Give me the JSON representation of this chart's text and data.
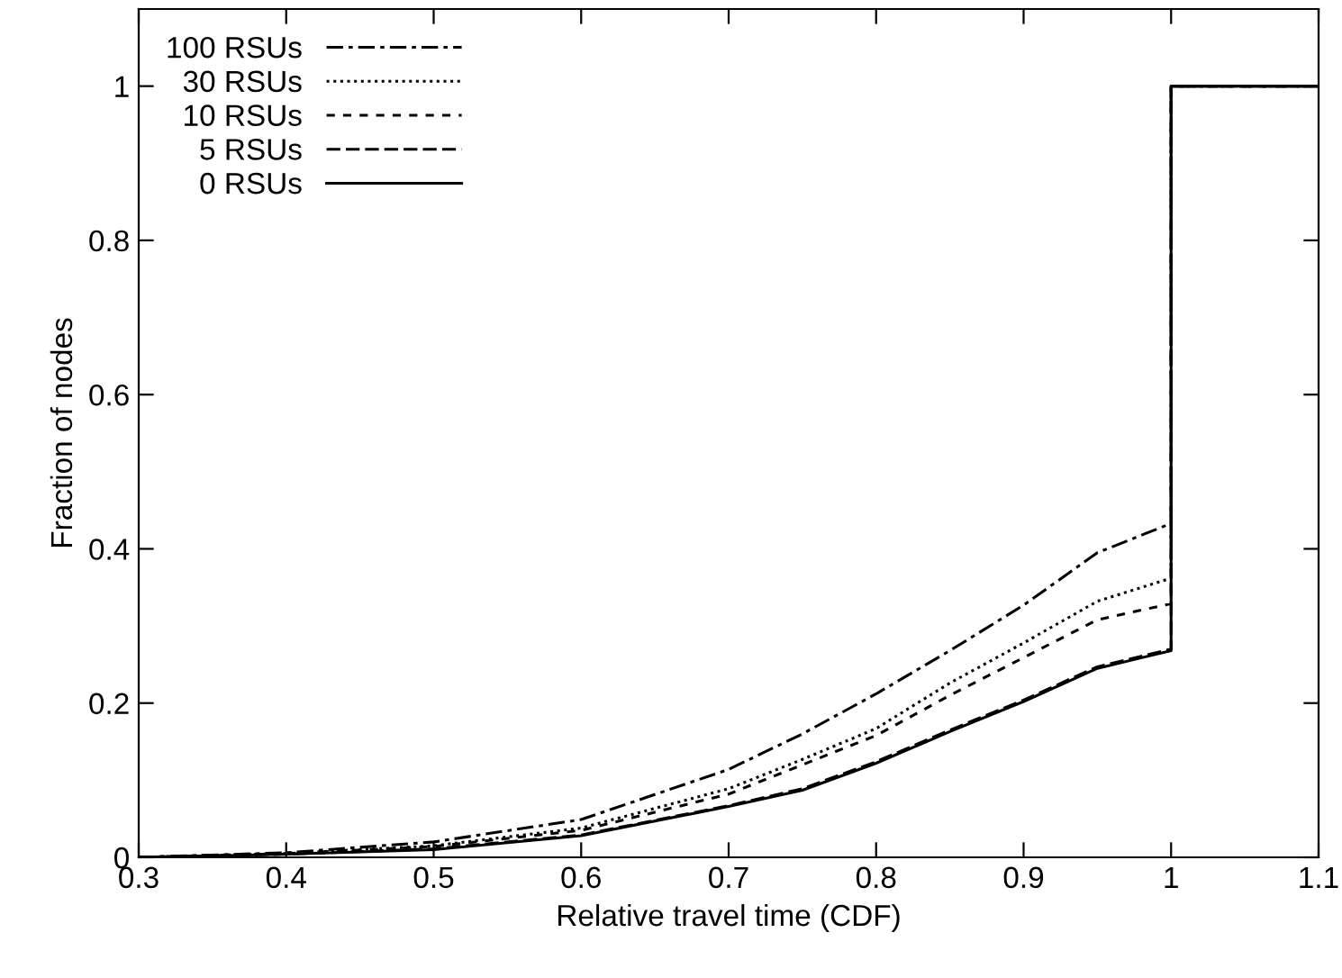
{
  "chart_data": {
    "type": "line",
    "xlabel": "Relative travel time (CDF)",
    "ylabel": "Fraction of nodes",
    "x": [
      0.3,
      0.4,
      0.5,
      0.6,
      0.7,
      0.75,
      0.8,
      0.85,
      0.9,
      0.95,
      1.0,
      1.0,
      1.1
    ],
    "series": [
      {
        "name": "100 RSUs",
        "color": "#000000",
        "line_style": "dashdot",
        "values": [
          0,
          0.006,
          0.02,
          0.049,
          0.114,
          0.16,
          0.212,
          0.268,
          0.327,
          0.395,
          0.433,
          1,
          1
        ]
      },
      {
        "name": "30 RSUs",
        "color": "#000000",
        "line_style": "dotted",
        "values": [
          0,
          0.005,
          0.015,
          0.038,
          0.089,
          0.127,
          0.167,
          0.226,
          0.278,
          0.332,
          0.362,
          1,
          1
        ]
      },
      {
        "name": "10 RSUs",
        "color": "#000000",
        "line_style": "dashed",
        "values": [
          0,
          0.005,
          0.014,
          0.035,
          0.082,
          0.12,
          0.158,
          0.21,
          0.259,
          0.308,
          0.329,
          1,
          1
        ]
      },
      {
        "name": "5 RSUs",
        "color": "#000000",
        "line_style": "longdash",
        "values": [
          0,
          0.004,
          0.011,
          0.029,
          0.067,
          0.089,
          0.124,
          0.165,
          0.204,
          0.247,
          0.27,
          1,
          1
        ]
      },
      {
        "name": "0 RSUs",
        "color": "#000000",
        "line_style": "solid",
        "values": [
          0,
          0.004,
          0.01,
          0.028,
          0.066,
          0.087,
          0.122,
          0.163,
          0.202,
          0.245,
          0.268,
          1,
          1
        ]
      }
    ],
    "xlim": [
      0.3,
      1.1
    ],
    "xticks": [
      0.3,
      0.4,
      0.5,
      0.6,
      0.7,
      0.8,
      0.9,
      1,
      1.1
    ],
    "ylim": [
      0,
      1.1
    ],
    "yticks": [
      0,
      0.2,
      0.4,
      0.6,
      0.8,
      1
    ],
    "grid": false,
    "legend": "top left"
  }
}
